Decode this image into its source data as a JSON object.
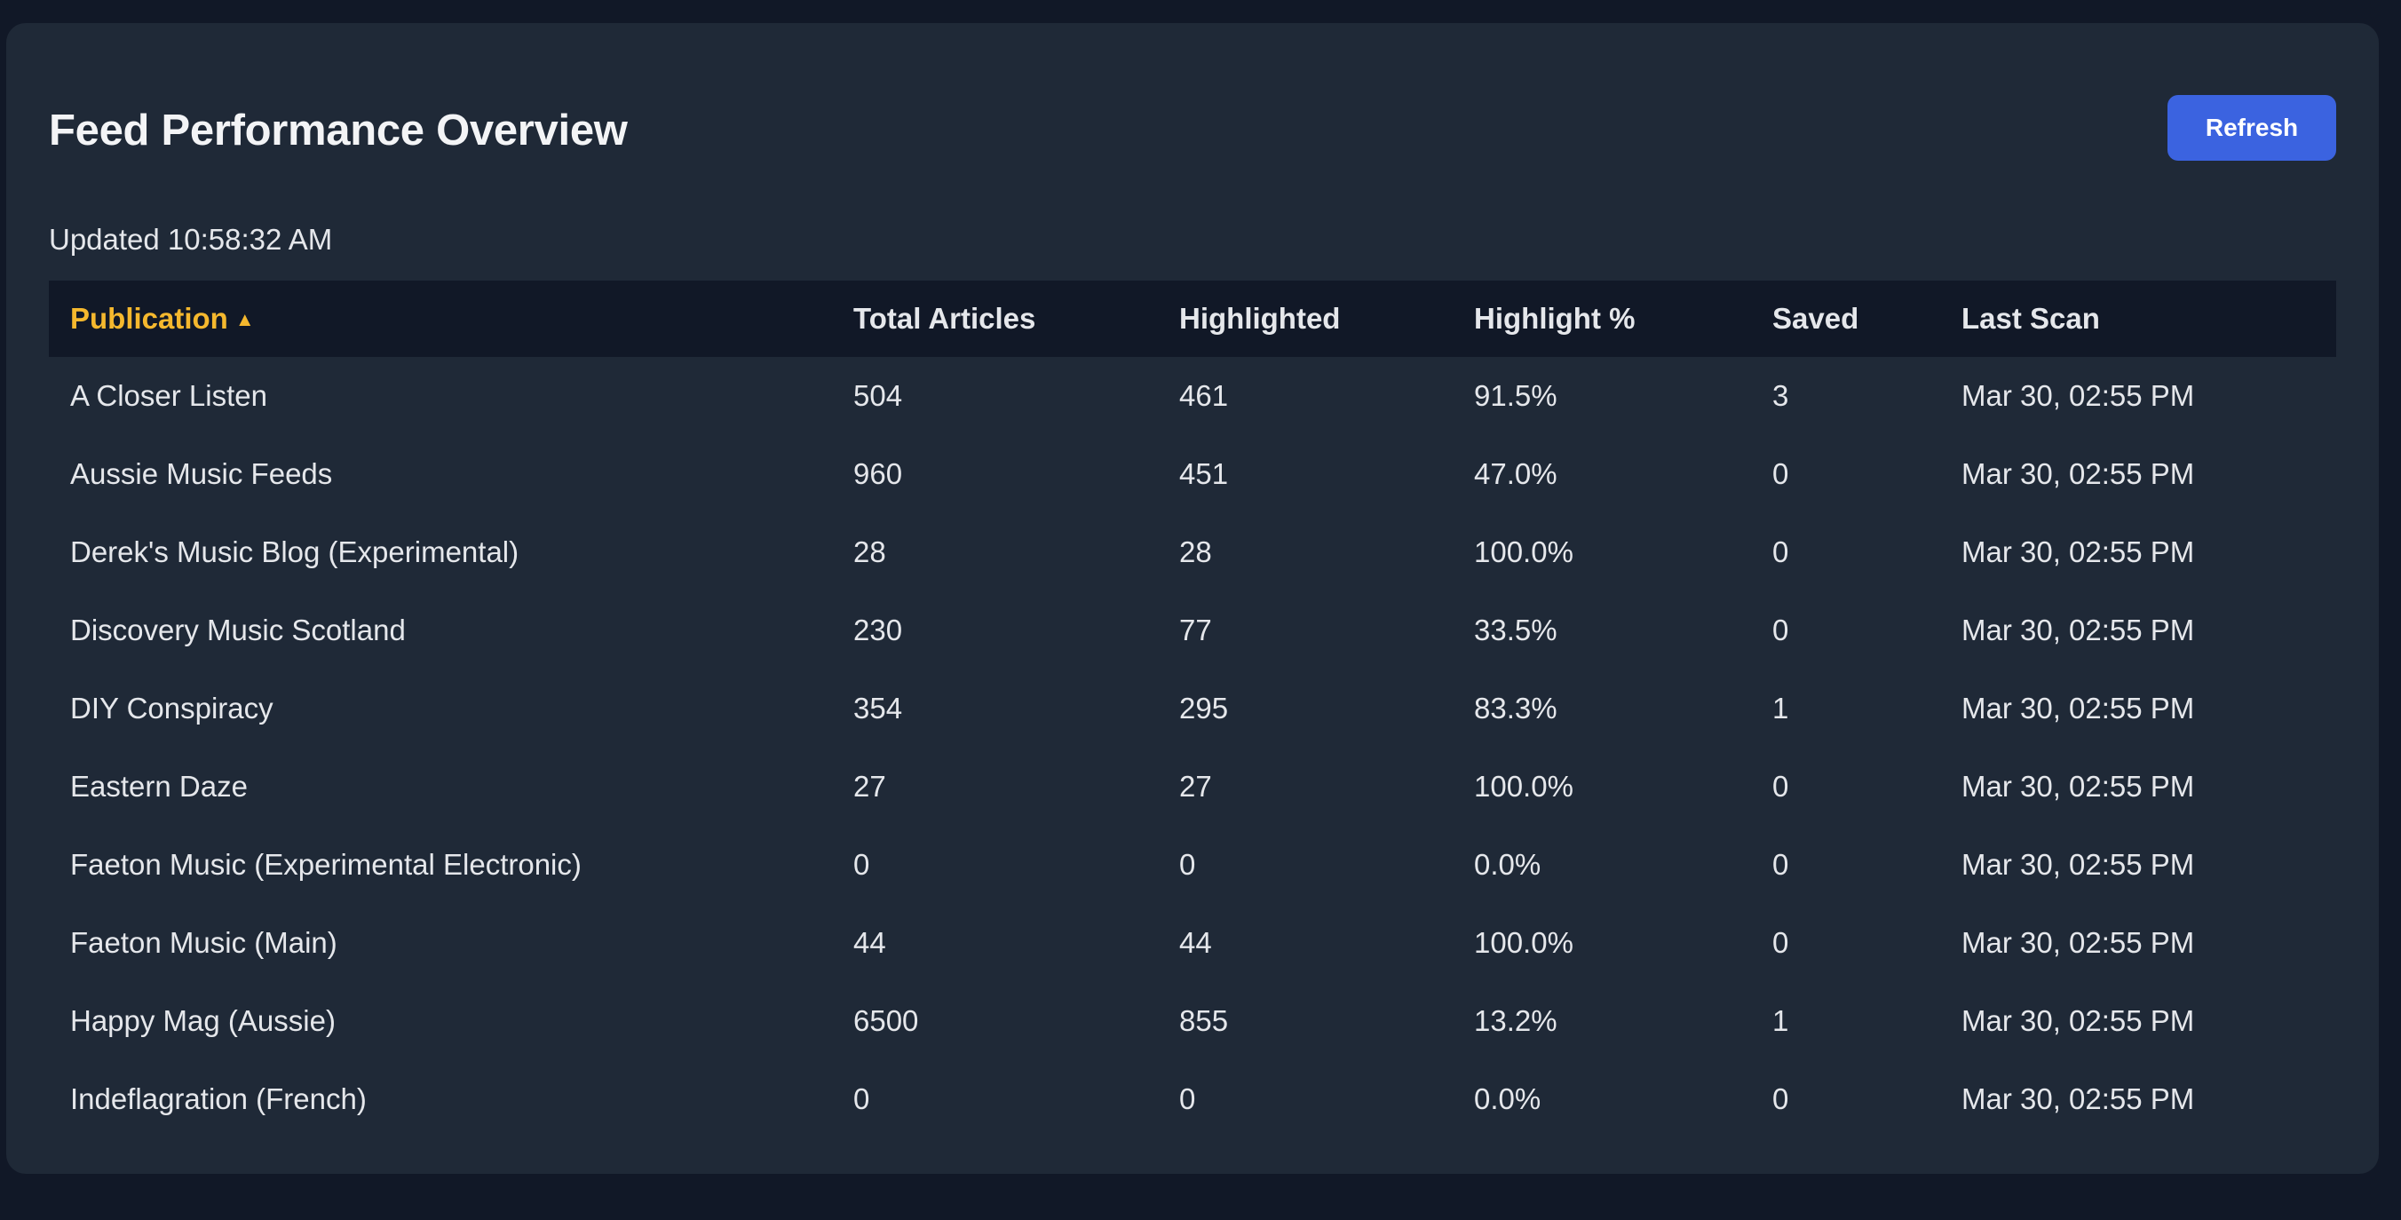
{
  "header": {
    "title": "Feed Performance Overview",
    "refresh_label": "Refresh",
    "updated": "Updated 10:58:32 AM"
  },
  "colors": {
    "background": "#111827",
    "card": "#1f2937",
    "accent_button": "#3b63e0",
    "active_sort": "#f5b82e"
  },
  "table": {
    "columns": [
      {
        "label": "Publication",
        "sort": "ascending",
        "sort_icon": "triangle-up-icon"
      },
      {
        "label": "Total Articles"
      },
      {
        "label": "Highlighted"
      },
      {
        "label": "Highlight %"
      },
      {
        "label": "Saved"
      },
      {
        "label": "Last Scan"
      }
    ],
    "rows": [
      [
        "A Closer Listen",
        "504",
        "461",
        "91.5%",
        "3",
        "Mar 30, 02:55 PM"
      ],
      [
        "Aussie Music Feeds",
        "960",
        "451",
        "47.0%",
        "0",
        "Mar 30, 02:55 PM"
      ],
      [
        "Derek's Music Blog (Experimental)",
        "28",
        "28",
        "100.0%",
        "0",
        "Mar 30, 02:55 PM"
      ],
      [
        "Discovery Music Scotland",
        "230",
        "77",
        "33.5%",
        "0",
        "Mar 30, 02:55 PM"
      ],
      [
        "DIY Conspiracy",
        "354",
        "295",
        "83.3%",
        "1",
        "Mar 30, 02:55 PM"
      ],
      [
        "Eastern Daze",
        "27",
        "27",
        "100.0%",
        "0",
        "Mar 30, 02:55 PM"
      ],
      [
        "Faeton Music (Experimental Electronic)",
        "0",
        "0",
        "0.0%",
        "0",
        "Mar 30, 02:55 PM"
      ],
      [
        "Faeton Music (Main)",
        "44",
        "44",
        "100.0%",
        "0",
        "Mar 30, 02:55 PM"
      ],
      [
        "Happy Mag (Aussie)",
        "6500",
        "855",
        "13.2%",
        "1",
        "Mar 30, 02:55 PM"
      ],
      [
        "Indeflagration (French)",
        "0",
        "0",
        "0.0%",
        "0",
        "Mar 30, 02:55 PM"
      ]
    ]
  }
}
